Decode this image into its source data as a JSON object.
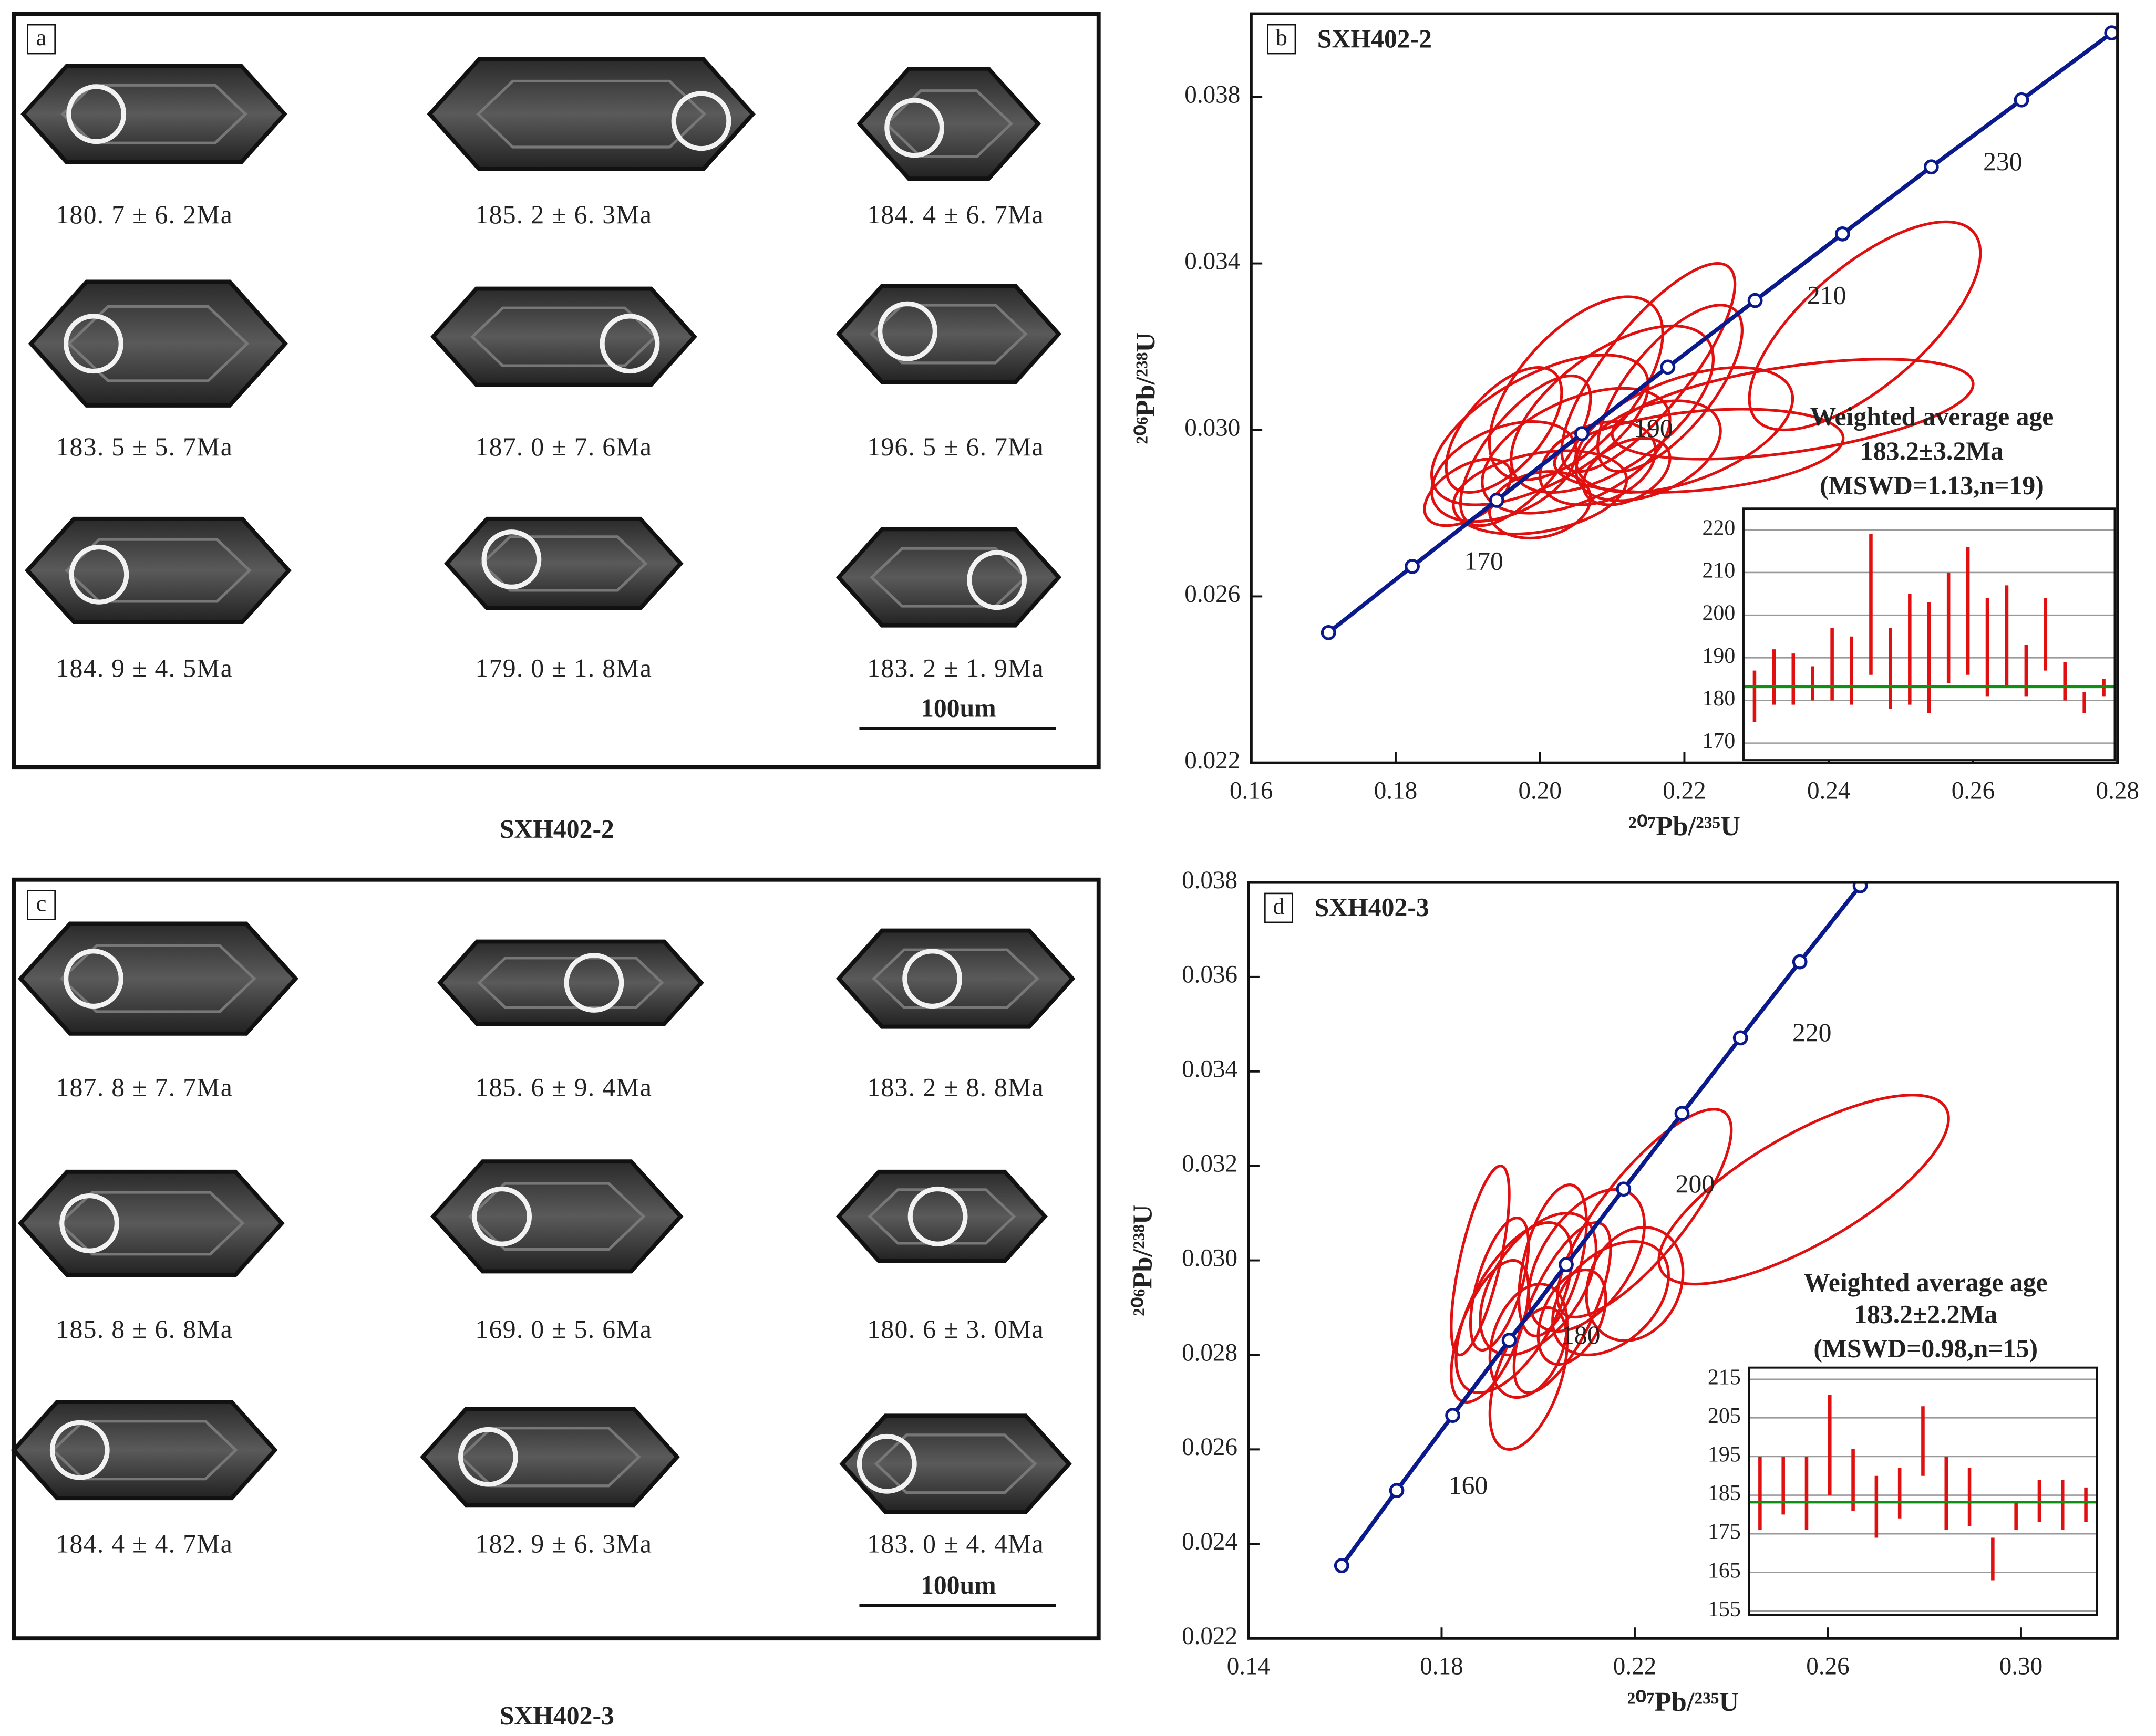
{
  "image_panels": [
    {
      "letter": "a",
      "sample": "SXH402-2",
      "scale_bar": "100um",
      "ages": [
        "180. 7 ± 6. 2Ma",
        "185. 2 ± 6. 3Ma",
        "184. 4 ± 6. 7Ma",
        "183. 5 ± 5. 7Ma",
        "187. 0 ± 7. 6Ma",
        "196. 5 ± 6. 7Ma",
        "184. 9 ± 4. 5Ma",
        "179. 0 ± 1. 8Ma",
        "183. 2 ± 1. 9Ma"
      ]
    },
    {
      "letter": "c",
      "sample": "SXH402-3",
      "scale_bar": "100um",
      "ages": [
        "187. 8 ± 7. 7Ma",
        "185. 6 ± 9. 4Ma",
        "183. 2 ± 8. 8Ma",
        "185. 8 ± 6. 8Ma",
        "169. 0 ± 5. 6Ma",
        "180. 6 ± 3. 0Ma",
        "184. 4 ± 4. 7Ma",
        "182. 9 ± 6. 3Ma",
        "183. 0 ± 4. 4Ma"
      ]
    }
  ],
  "chart_data": [
    {
      "type": "concordia",
      "letter": "b",
      "title": "SXH402-2",
      "x_label": "²⁰⁷Pb/²³⁵U",
      "y_label": "²⁰⁶Pb/²³⁸U",
      "xlim": [
        0.16,
        0.28
      ],
      "xticks": [
        0.16,
        0.18,
        {
          "value": 0.2,
          "label": "0.20"
        },
        0.22,
        0.24,
        0.26,
        0.28
      ],
      "ylim": [
        0.022,
        0.04
      ],
      "yticks": [
        0.022,
        0.026,
        {
          "value": 0.03,
          "label": "0.030"
        },
        0.034,
        0.038
      ],
      "line_color": "#0a1a8c",
      "ellipse_color": "#e01010",
      "concordia": {
        "x": [
          0.1707,
          0.1823,
          0.194,
          0.2058,
          0.2177,
          0.2298,
          0.2419,
          0.2542,
          0.2667,
          0.2792
        ],
        "y": [
          0.02513,
          0.02672,
          0.02831,
          0.02991,
          0.03151,
          0.03311,
          0.03471,
          0.03632,
          0.03793,
          0.03954
        ]
      },
      "age_labels": [
        170,
        190,
        210,
        230
      ],
      "ellipses": {
        "x": [
          0.215,
          0.245,
          0.235,
          0.2,
          0.205,
          0.195,
          0.21,
          0.2,
          0.198,
          0.205,
          0.215,
          0.19,
          0.22,
          0.208,
          0.195,
          0.212,
          0.222,
          0.2,
          0.218
        ],
        "y": [
          0.0315,
          0.0325,
          0.0305,
          0.03,
          0.0295,
          0.029,
          0.0305,
          0.0285,
          0.0295,
          0.031,
          0.0295,
          0.0285,
          0.03,
          0.0292,
          0.03,
          0.029,
          0.0295,
          0.0282,
          0.031
        ],
        "x_err": [
          0.012,
          0.016,
          0.025,
          0.015,
          0.013,
          0.01,
          0.014,
          0.012,
          0.009,
          0.012,
          0.01,
          0.006,
          0.015,
          0.008,
          0.008,
          0.006,
          0.02,
          0.007,
          0.01
        ],
        "y_err": [
          0.0025,
          0.0025,
          0.0012,
          0.0018,
          0.0015,
          0.0012,
          0.002,
          0.001,
          0.0018,
          0.0022,
          0.0012,
          0.0008,
          0.0015,
          0.001,
          0.0015,
          0.0008,
          0.001,
          0.0008,
          0.002
        ],
        "rho": [
          0.8,
          0.7,
          0.5,
          0.6,
          0.5,
          0.4,
          0.6,
          0.3,
          0.7,
          0.6,
          0.4,
          0.5,
          0.5,
          0.3,
          0.6,
          0.4,
          0.3,
          0.2,
          0.7
        ]
      },
      "inset": {
        "type": "errorbar",
        "title_lines": [
          "Weighted average age",
          "183.2±3.2Ma",
          "(MSWD=1.13,n=19)"
        ],
        "values": [
          181,
          185.5,
          185,
          184,
          188.5,
          187,
          202.5,
          187.5,
          192,
          190,
          197,
          201,
          192.5,
          195,
          187,
          195.5,
          184.5,
          179.5,
          183
        ],
        "errors": [
          6,
          6.5,
          6,
          4,
          8.5,
          8,
          16.5,
          9.5,
          13,
          13,
          13,
          15,
          11.5,
          12,
          6,
          8.5,
          4.5,
          2.5,
          2
        ],
        "mean": 183.2,
        "ylim": [
          166,
          225
        ],
        "yticks": [
          170,
          180,
          190,
          200,
          210,
          220
        ],
        "color": "#e01010",
        "mean_color": "#109010",
        "grid": true
      }
    },
    {
      "type": "concordia",
      "letter": "d",
      "title": "SXH402-3",
      "x_label": "²⁰⁷Pb/²³⁵U",
      "y_label": "²⁰⁶Pb/²³⁸U",
      "xlim": [
        0.14,
        0.32
      ],
      "xticks": [
        0.14,
        0.18,
        0.22,
        0.26,
        {
          "value": 0.3,
          "label": "0.30"
        }
      ],
      "ylim": [
        0.022,
        0.038
      ],
      "yticks": [
        0.022,
        0.024,
        0.026,
        0.028,
        {
          "value": 0.03,
          "label": "0.030"
        },
        0.032,
        0.034,
        0.036,
        0.038
      ],
      "line_color": "#0a1a8c",
      "ellipse_color": "#e01010",
      "concordia": {
        "x": [
          0.1593,
          0.1707,
          0.1823,
          0.194,
          0.2058,
          0.2177,
          0.2298,
          0.2419,
          0.2542,
          0.2667
        ],
        "y": [
          0.02354,
          0.02513,
          0.02672,
          0.02831,
          0.02991,
          0.03151,
          0.03311,
          0.03471,
          0.03632,
          0.03793
        ]
      },
      "age_labels": [
        160,
        180,
        200,
        220
      ],
      "ellipses": {
        "x": [
          0.255,
          0.222,
          0.195,
          0.2,
          0.205,
          0.21,
          0.19,
          0.215,
          0.198,
          0.203,
          0.22,
          0.192,
          0.207,
          0.188,
          0.198
        ],
        "y": [
          0.0315,
          0.031,
          0.029,
          0.0295,
          0.029,
          0.03,
          0.0285,
          0.0292,
          0.0283,
          0.03,
          0.0295,
          0.0295,
          0.0288,
          0.03,
          0.0275
        ],
        "x_err": [
          0.03,
          0.018,
          0.012,
          0.012,
          0.01,
          0.012,
          0.008,
          0.012,
          0.008,
          0.007,
          0.01,
          0.006,
          0.007,
          0.006,
          0.008
        ],
        "y_err": [
          0.002,
          0.0022,
          0.0018,
          0.0015,
          0.0018,
          0.0015,
          0.0015,
          0.0012,
          0.0012,
          0.0016,
          0.0012,
          0.0014,
          0.001,
          0.002,
          0.0015
        ],
        "rho": [
          0.75,
          0.8,
          0.6,
          0.5,
          0.7,
          0.5,
          0.6,
          0.4,
          0.3,
          0.5,
          0.2,
          0.6,
          0.4,
          0.7,
          0.5
        ]
      },
      "inset": {
        "type": "errorbar",
        "title_lines": [
          "Weighted average age",
          "183.2±2.2Ma",
          "(MSWD=0.98,n=15)"
        ],
        "values": [
          185.5,
          187.5,
          185.5,
          198,
          189,
          182,
          185.5,
          199,
          185.5,
          184.5,
          168.5,
          179.5,
          183.5,
          182.5,
          182.5
        ],
        "errors": [
          9.5,
          7.5,
          9.5,
          13,
          8,
          8,
          6.5,
          9,
          9.5,
          7.5,
          5.5,
          3.5,
          5.5,
          6.5,
          4.5
        ],
        "mean": 183.2,
        "ylim": [
          154,
          218
        ],
        "yticks": [
          155,
          165,
          175,
          185,
          195,
          205,
          215
        ],
        "color": "#e01010",
        "mean_color": "#109010",
        "grid": true
      }
    }
  ]
}
